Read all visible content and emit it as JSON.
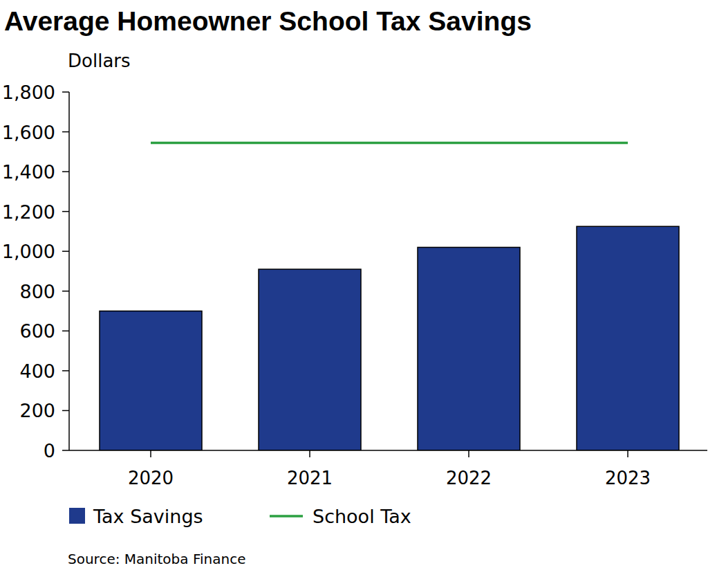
{
  "chart_data": {
    "type": "bar",
    "title": "Average Homeowner School Tax Savings",
    "y_label": "Dollars",
    "categories": [
      "2020",
      "2021",
      "2022",
      "2023"
    ],
    "series": [
      {
        "name": "Tax Savings",
        "type": "bar",
        "color": "#1f3a8c",
        "values": [
          700,
          910,
          1020,
          1125
        ]
      },
      {
        "name": "School Tax",
        "type": "line",
        "color": "#2ca042",
        "values": [
          1545,
          1545,
          1545,
          1545
        ]
      }
    ],
    "ylim": [
      0,
      1800
    ],
    "yticks": [
      0,
      200,
      400,
      600,
      800,
      {
        "value": 1000,
        "label": "1,000"
      },
      {
        "value": 1200,
        "label": "1,200"
      },
      {
        "value": 1400,
        "label": "1,400"
      },
      {
        "value": 1600,
        "label": "1,600"
      },
      {
        "value": 1800,
        "label": "1,800"
      }
    ],
    "grid": false,
    "legend": "bottom",
    "source": "Source: Manitoba Finance"
  }
}
